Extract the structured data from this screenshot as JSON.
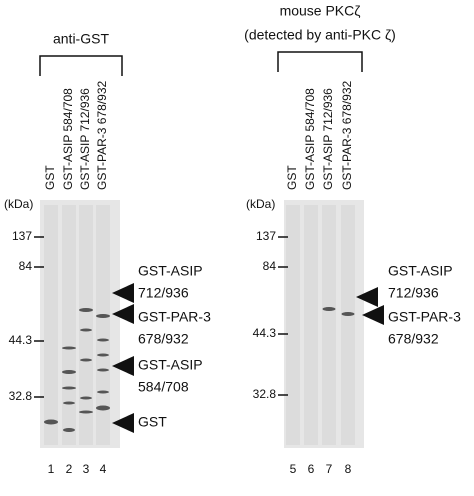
{
  "left_panel": {
    "title": "anti-GST",
    "lanes": [
      "GST",
      "GST-ASIP 584/708",
      "GST-ASIP 712/936",
      "GST-PAR-3 678/932"
    ],
    "size_unit": "(kDa)",
    "markers": [
      "137",
      "84",
      "44.3",
      "32.8"
    ],
    "lane_numbers": [
      "1",
      "2",
      "3",
      "4"
    ],
    "band_labels": [
      [
        "GST-ASIP",
        "712/936"
      ],
      [
        "GST-PAR-3",
        "678/932"
      ],
      [
        "GST-ASIP",
        "584/708"
      ],
      [
        "GST"
      ]
    ]
  },
  "right_panel": {
    "title": [
      "mouse PKCζ",
      "(detected by anti-PKC ζ)"
    ],
    "lanes": [
      "GST",
      "GST-ASIP 584/708",
      "GST-ASIP 712/936",
      "GST-PAR-3 678/932"
    ],
    "size_unit": "(kDa)",
    "markers": [
      "137",
      "84",
      "44.3",
      "32.8"
    ],
    "lane_numbers": [
      "5",
      "6",
      "7",
      "8"
    ],
    "band_labels": [
      [
        "GST-ASIP",
        "712/936"
      ],
      [
        "GST-PAR-3",
        "678/932"
      ]
    ]
  }
}
